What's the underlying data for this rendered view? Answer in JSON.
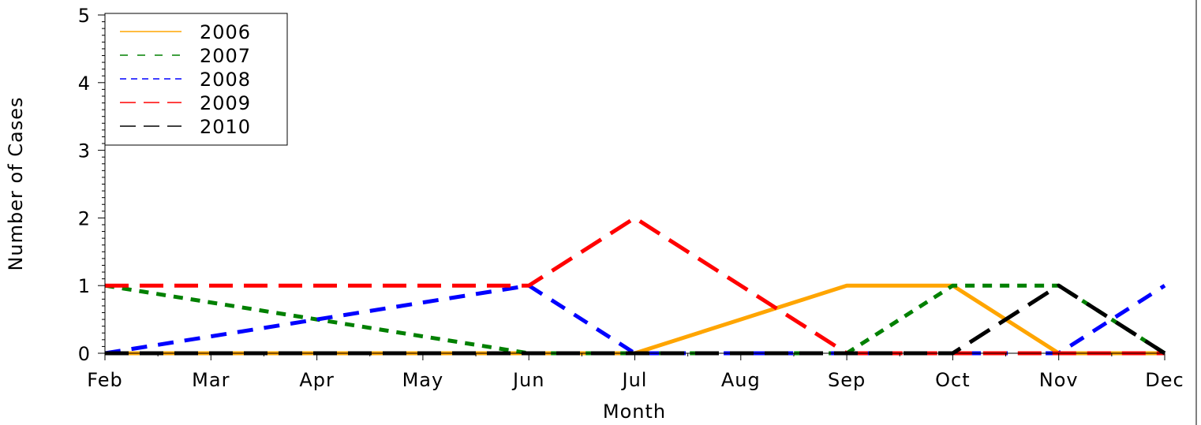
{
  "chart_data": {
    "type": "line",
    "title": "",
    "xlabel": "Month",
    "ylabel": "Number of Cases",
    "categories": [
      "Feb",
      "Mar",
      "Apr",
      "May",
      "Jun",
      "Jul",
      "Aug",
      "Sep",
      "Oct",
      "Nov",
      "Dec"
    ],
    "ylim": [
      0,
      5
    ],
    "yticks": [
      "0",
      "1",
      "2",
      "3",
      "4",
      "5"
    ],
    "legend_position": "top-left",
    "grid": false,
    "series": [
      {
        "name": "2006",
        "color": "#FFA500",
        "style": "solid",
        "values": [
          0,
          0,
          0,
          0,
          0,
          0,
          0.5,
          1,
          1,
          0,
          0
        ]
      },
      {
        "name": "2007",
        "color": "#008000",
        "style": "dotted",
        "values": [
          1,
          0.75,
          0.5,
          0.25,
          0,
          0,
          0,
          0,
          1,
          1,
          0
        ]
      },
      {
        "name": "2008",
        "color": "#0000FF",
        "style": "dash",
        "values": [
          0,
          0.25,
          0.5,
          0.75,
          1,
          0,
          0,
          0,
          0,
          0,
          1
        ]
      },
      {
        "name": "2009",
        "color": "#FF0000",
        "style": "longdash",
        "values": [
          1,
          1,
          1,
          1,
          1,
          2,
          1,
          0,
          0,
          0,
          0
        ]
      },
      {
        "name": "2010",
        "color": "#000000",
        "style": "longdash",
        "values": [
          0,
          0,
          0,
          0,
          0,
          0,
          0,
          0,
          0,
          1,
          0
        ]
      }
    ]
  }
}
